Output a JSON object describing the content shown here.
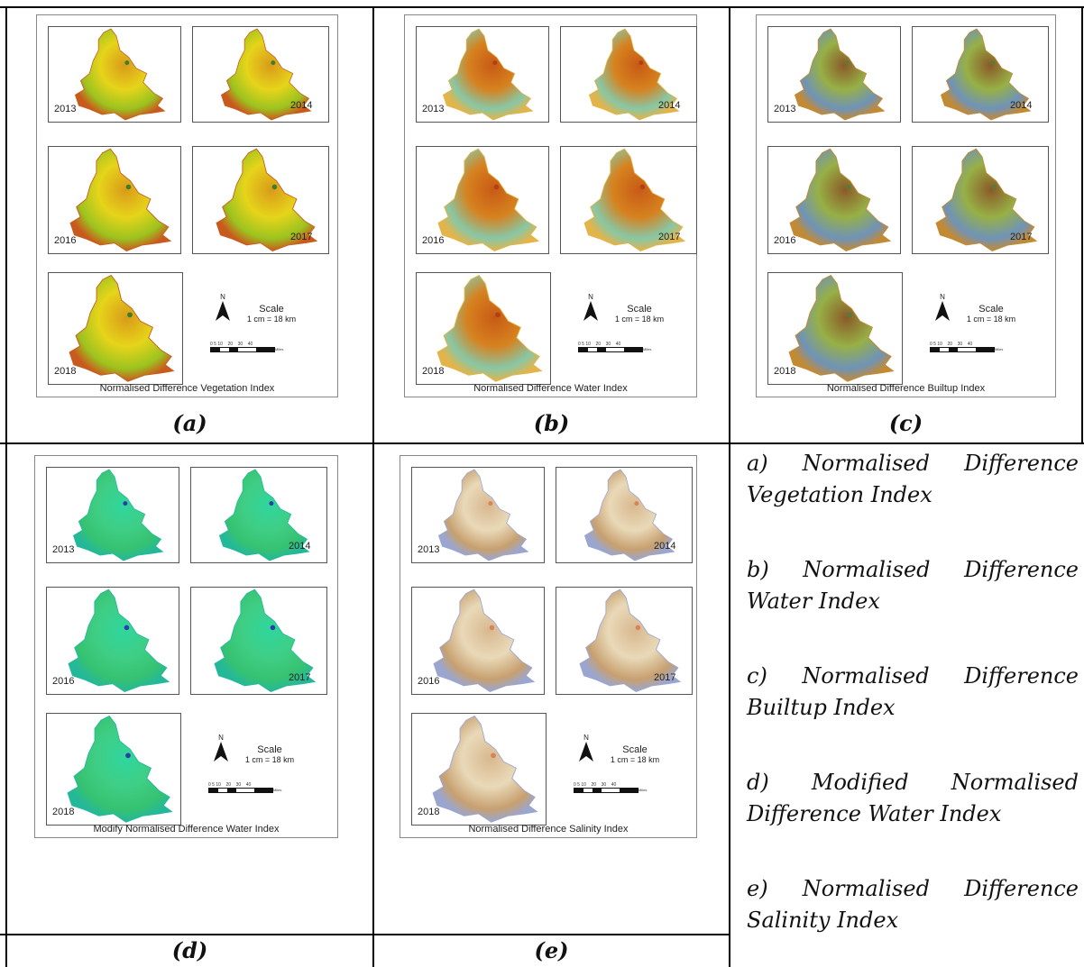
{
  "panels": [
    {
      "id": "a",
      "title": "Normalised Difference Vegetation Index",
      "caption": "(a)",
      "years": [
        "2013",
        "2014",
        "2016",
        "2017",
        "2018"
      ],
      "palette": [
        "#e6d41a",
        "#d99a1a",
        "#9cc31f",
        "#c95a1d",
        "#3f7d2a"
      ]
    },
    {
      "id": "b",
      "title": "Normalised Difference Water Index",
      "caption": "(b)",
      "years": [
        "2013",
        "2014",
        "2016",
        "2017",
        "2018"
      ],
      "palette": [
        "#d6821f",
        "#c85a16",
        "#88c7a6",
        "#e3b44a",
        "#b33f12"
      ]
    },
    {
      "id": "c",
      "title": "Normalised Difference Builtup Index",
      "caption": "(c)",
      "years": [
        "2013",
        "2014",
        "2016",
        "2017",
        "2018"
      ],
      "palette": [
        "#97b046",
        "#8a5a28",
        "#6f93b8",
        "#c38a34",
        "#5b7a3a"
      ]
    },
    {
      "id": "d",
      "title": "Modify Normalised Difference Water Index",
      "caption": "(d)",
      "years": [
        "2013",
        "2014",
        "2016",
        "2017",
        "2018"
      ],
      "palette": [
        "#3fce85",
        "#2fd69e",
        "#36c271",
        "#24b89a",
        "#2a3fa7"
      ]
    },
    {
      "id": "e",
      "title": "Normalised Difference Salinity Index",
      "caption": "(e)",
      "years": [
        "2013",
        "2014",
        "2016",
        "2017",
        "2018"
      ],
      "palette": [
        "#e9d9b8",
        "#d8b88f",
        "#c7a070",
        "#9aa6d0",
        "#d8835a"
      ]
    }
  ],
  "scale": {
    "north": "N",
    "label": "Scale",
    "ratio": "1 cm = 18 km",
    "ticks": "0 5 10    20    30    40",
    "unit": "Miles"
  },
  "legend": [
    "a) Normalised Difference Vegetation Index",
    "b) Normalised Difference Water Index",
    "c) Normalised Difference Builtup Index",
    "d) Modified Normalised Difference Water Index",
    "e) Normalised Difference Salinity Index"
  ]
}
